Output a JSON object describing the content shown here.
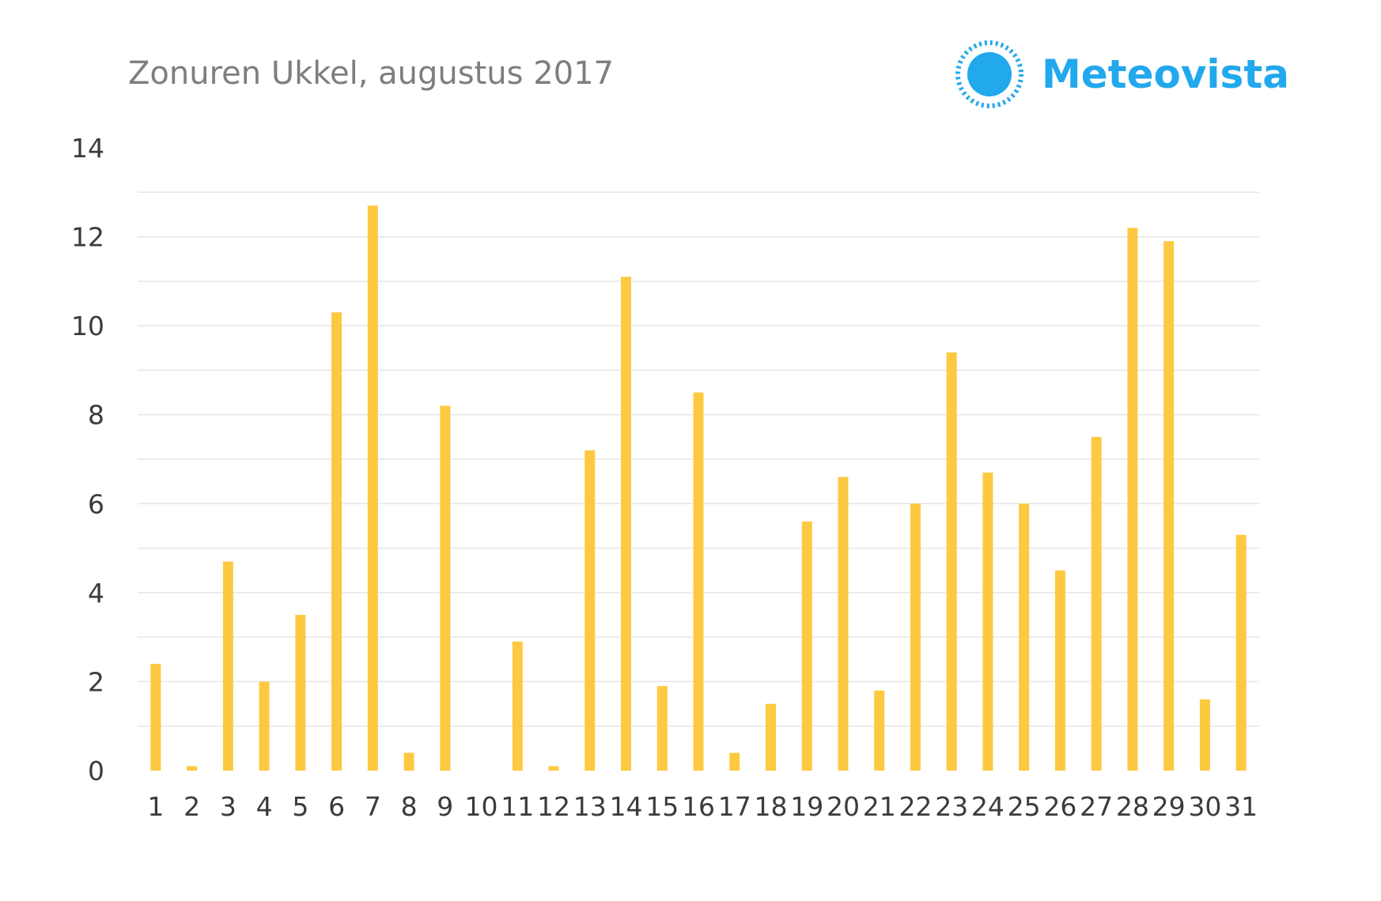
{
  "header": {
    "title": "Zonuren Ukkel, augustus 2017"
  },
  "brand": {
    "name": "Meteovista",
    "logo_icon": "sun-icon",
    "color": "#22a8ec"
  },
  "chart_data": {
    "type": "bar",
    "title": "Zonuren Ukkel, augustus 2017",
    "xlabel": "",
    "ylabel": "",
    "categories": [
      "1",
      "2",
      "3",
      "4",
      "5",
      "6",
      "7",
      "8",
      "9",
      "10",
      "11",
      "12",
      "13",
      "14",
      "15",
      "16",
      "17",
      "18",
      "19",
      "20",
      "21",
      "22",
      "23",
      "24",
      "25",
      "26",
      "27",
      "28",
      "29",
      "30",
      "31"
    ],
    "values": [
      2.4,
      0.1,
      4.7,
      2.0,
      3.5,
      10.3,
      12.7,
      0.4,
      8.2,
      0.0,
      2.9,
      0.1,
      7.2,
      11.1,
      1.9,
      8.5,
      0.4,
      1.5,
      5.6,
      6.6,
      1.8,
      6.0,
      9.4,
      6.7,
      6.0,
      4.5,
      7.5,
      12.2,
      11.9,
      1.6,
      5.3
    ],
    "ylim": [
      0,
      14
    ],
    "yticks": [
      "0",
      "2",
      "4",
      "6",
      "8",
      "10",
      "12",
      "14"
    ],
    "grid": true,
    "bar_color": "#fdc940",
    "grid_color": "#e6e6e6"
  }
}
